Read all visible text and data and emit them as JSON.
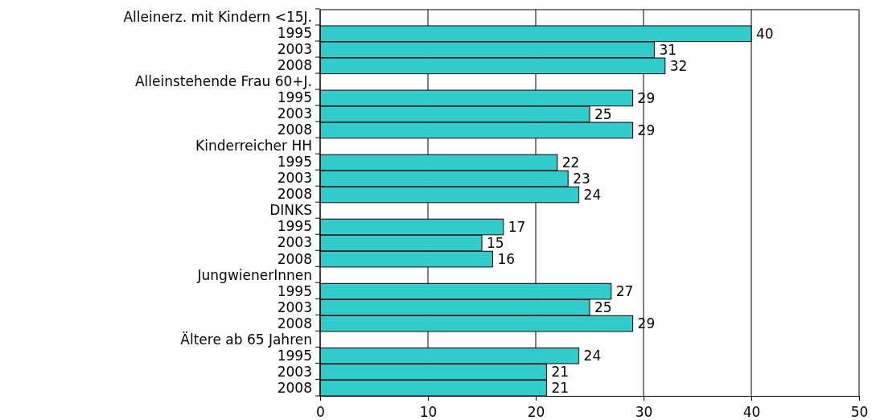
{
  "chart_data": {
    "type": "bar",
    "orientation": "horizontal",
    "categories": [
      "Alleinerz. mit Kindern <15J.",
      "1995",
      "2003",
      "2008",
      "Alleinstehende Frau 60+J.",
      "1995",
      "2003",
      "2008",
      "Kinderreicher HH",
      "1995",
      "2003",
      "2008",
      "DINKS",
      "1995",
      "2003",
      "2008",
      "JungwienerInnen",
      "1995",
      "2003",
      "2008",
      "Ältere ab 65 Jahren",
      "1995",
      "2003",
      "2008"
    ],
    "values": [
      null,
      40,
      31,
      32,
      null,
      29,
      25,
      29,
      null,
      22,
      23,
      24,
      null,
      17,
      15,
      16,
      null,
      27,
      25,
      29,
      null,
      24,
      21,
      21
    ],
    "color": "#33cccc",
    "xlim": [
      0,
      50
    ],
    "xticks": [
      0,
      10,
      20,
      30,
      40,
      50
    ],
    "grid": "x",
    "data_labels": true
  }
}
